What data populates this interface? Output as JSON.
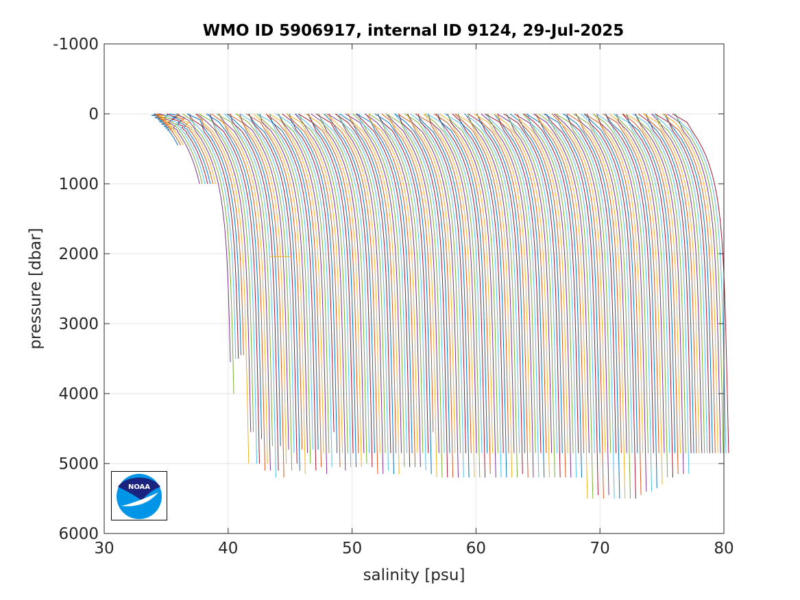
{
  "chart_data": {
    "type": "line",
    "title": "WMO ID 5906917, internal ID 9124, 29-Jul-2025",
    "xlabel": "salinity [psu]",
    "ylabel": "pressure [dbar]",
    "xlim": [
      30,
      80
    ],
    "ylim": [
      -1000,
      6000
    ],
    "y_reversed": true,
    "grid": true,
    "xticks": [
      30,
      40,
      50,
      60,
      70,
      80
    ],
    "xtick_labels": [
      "30",
      "40",
      "50",
      "60",
      "70",
      "80"
    ],
    "yticks": [
      -1000,
      0,
      1000,
      2000,
      3000,
      4000,
      5000,
      6000
    ],
    "ytick_labels": [
      "-1000",
      "0",
      "1000",
      "2000",
      "3000",
      "4000",
      "5000",
      "6000"
    ],
    "series_colors": [
      "#0072BD",
      "#D95319",
      "#EDB120",
      "#7E2F8E",
      "#77AC30",
      "#4DBEEE",
      "#A2142F"
    ],
    "profile_count": 196,
    "first_profile_surface_salinity": 34.0,
    "last_profile_surface_salinity": 76.2,
    "profile_offset_psu": 0.215,
    "profile_max_pressure_dbar": [
      450,
      450,
      450,
      1000,
      1000,
      1000,
      1000,
      1000,
      1000,
      1000,
      3550,
      4000,
      3500,
      3500,
      3450,
      3450,
      5000,
      4550,
      4550,
      5000,
      5000,
      4650,
      5100,
      5000,
      5100,
      4750,
      5200,
      5100,
      4750,
      5200,
      5000,
      4800,
      5100,
      4850,
      5000,
      5100,
      4800,
      5150,
      4850,
      5000,
      4800,
      5100,
      4800,
      5050,
      4850,
      5150,
      4850,
      5050,
      4550,
      4850,
      5050,
      4850,
      5100,
      4850,
      5050,
      4850,
      5050,
      4850,
      5050,
      4850,
      5000,
      4850,
      5050,
      4850,
      5150,
      4850,
      5150,
      4850,
      5100,
      4850,
      5150,
      4850,
      5150,
      4850,
      5050,
      4850,
      5050,
      4850,
      5050,
      4850,
      5050,
      4850,
      5100,
      4850,
      5150,
      4550,
      5200,
      4850,
      5200,
      4850,
      5200,
      4850,
      5200,
      4850,
      5200,
      4850,
      5200,
      4850,
      5200,
      4850,
      5200,
      4850,
      5200,
      4850,
      5200,
      4850,
      5150,
      4850,
      5200,
      4850,
      5200,
      4850,
      5200,
      4850,
      5200,
      4850,
      5200,
      4850,
      5150,
      4850,
      5200,
      4850,
      5200,
      4850,
      5200,
      4850,
      5200,
      4850,
      5200,
      4850,
      5200,
      4850,
      5200,
      4850,
      5200,
      4850,
      5200,
      4850,
      5200,
      4850,
      5200,
      4850,
      5500,
      4850,
      5500,
      4850,
      5450,
      4850,
      5500,
      4850,
      5450,
      4850,
      5500,
      4850,
      5500,
      4850,
      5500,
      4850,
      5500,
      4850,
      5500,
      4850,
      5450,
      4850,
      5400,
      4850,
      5400,
      4850,
      5350,
      4850,
      5300,
      4850,
      5200,
      4850,
      5200,
      4850,
      5150,
      4850,
      5150,
      4850,
      5150,
      4850,
      4850,
      4850,
      4850,
      4850,
      4850,
      4850,
      4850,
      4850,
      4850,
      4850,
      4850,
      4850,
      4850,
      4850
    ],
    "spike_annotation": {
      "x_start": 43.4,
      "x_end": 45.1,
      "pressure": 2040
    }
  },
  "logo": {
    "text": "NOAA",
    "outer_color": "#0095E6",
    "inner_color": "#1A237E"
  }
}
